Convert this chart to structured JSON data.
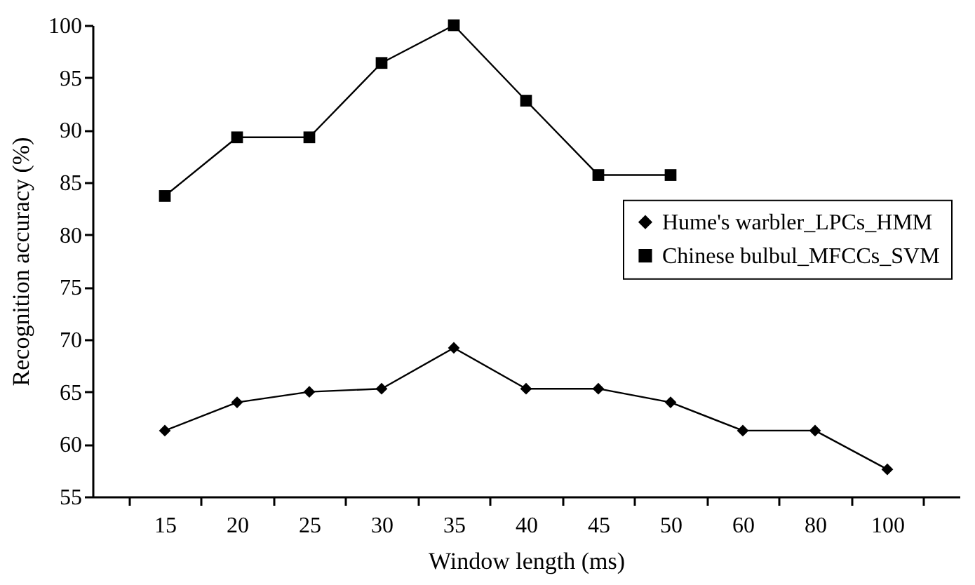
{
  "chart_data": {
    "type": "line",
    "xlabel": "Window length (ms)",
    "ylabel": "Recognition accuracy (%)",
    "categories": [
      "15",
      "20",
      "25",
      "30",
      "35",
      "40",
      "45",
      "50",
      "60",
      "80",
      "100"
    ],
    "series": [
      {
        "name": "Hume's warbler_LPCs_HMM",
        "color": "#000000",
        "marker": "diamond",
        "values": [
          61.3,
          64.0,
          65.0,
          65.3,
          69.2,
          65.3,
          65.3,
          64.0,
          61.3,
          61.3,
          57.6
        ]
      },
      {
        "name": "Chinese bulbul_MFCCs_SVM",
        "color": "#000000",
        "marker": "square",
        "values": [
          83.7,
          89.3,
          89.3,
          96.4,
          100,
          92.8,
          85.7,
          85.7,
          null,
          null,
          null
        ]
      }
    ],
    "ylim": [
      55,
      100
    ],
    "yticks": [
      55,
      60,
      65,
      70,
      75,
      80,
      85,
      90,
      95,
      100
    ],
    "grid": false,
    "legend": "right",
    "line_style": "solid"
  }
}
